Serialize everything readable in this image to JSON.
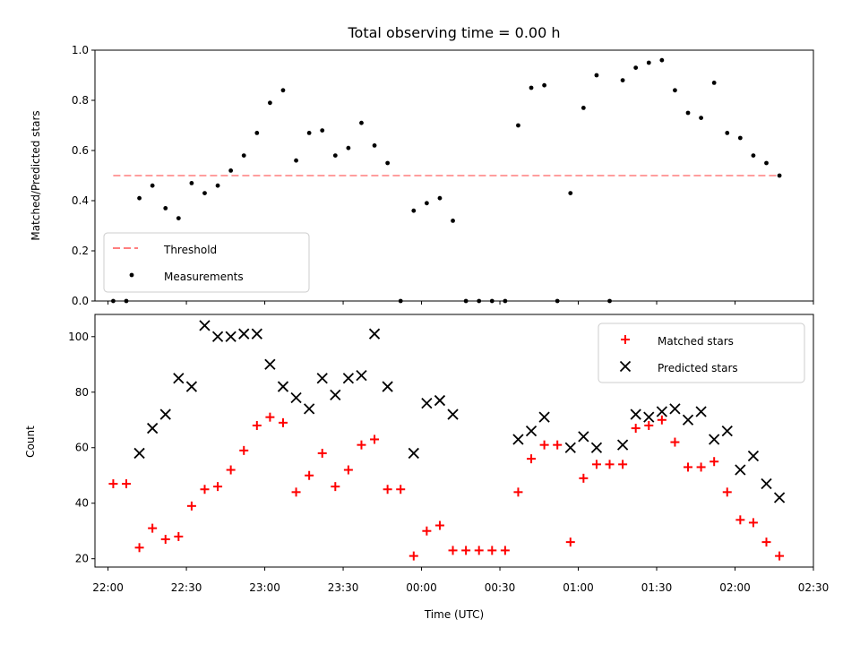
{
  "chart_data": [
    {
      "type": "scatter",
      "title": "Total observing time = 0.00 h",
      "xlabel": "",
      "ylabel": "Matched/Predicted stars",
      "ylim": [
        0,
        1.0
      ],
      "yticks": [
        "0.0",
        "0.2",
        "0.4",
        "0.6",
        "0.8",
        "1.0"
      ],
      "xlim": [
        "21:55",
        "02:30"
      ],
      "legend_position": "lower-left",
      "threshold": {
        "name": "Threshold",
        "value": 0.5,
        "x_start": "22:02",
        "x_end": "02:17",
        "color": "#ff7f7f",
        "style": "dashed"
      },
      "series": [
        {
          "name": "Measurements",
          "color": "#000000",
          "marker": "dot",
          "x": [
            "22:02",
            "22:07",
            "22:12",
            "22:17",
            "22:22",
            "22:27",
            "22:32",
            "22:37",
            "22:42",
            "22:47",
            "22:52",
            "22:57",
            "23:02",
            "23:07",
            "23:12",
            "23:17",
            "23:22",
            "23:27",
            "23:32",
            "23:37",
            "23:42",
            "23:47",
            "23:52",
            "23:57",
            "00:02",
            "00:07",
            "00:12",
            "00:17",
            "00:22",
            "00:27",
            "00:32",
            "00:37",
            "00:42",
            "00:47",
            "00:52",
            "00:57",
            "01:02",
            "01:07",
            "01:12",
            "01:17",
            "01:22",
            "01:27",
            "01:32",
            "01:37",
            "01:42",
            "01:47",
            "01:52",
            "01:57",
            "02:02",
            "02:07",
            "02:12",
            "02:17"
          ],
          "values": [
            0.0,
            0.0,
            0.41,
            0.46,
            0.37,
            0.33,
            0.47,
            0.43,
            0.46,
            0.52,
            0.58,
            0.67,
            0.79,
            0.84,
            0.56,
            0.67,
            0.68,
            0.58,
            0.61,
            0.71,
            0.62,
            0.55,
            0.0,
            0.36,
            0.39,
            0.41,
            0.32,
            0.0,
            0.0,
            0.0,
            0.0,
            0.7,
            0.85,
            0.86,
            0.0,
            0.43,
            0.77,
            0.9,
            0.0,
            0.88,
            0.93,
            0.95,
            0.96,
            0.84,
            0.75,
            0.73,
            0.87,
            0.67,
            0.65,
            0.58,
            0.55,
            0.5
          ]
        }
      ]
    },
    {
      "type": "scatter",
      "title": "",
      "xlabel": "Time (UTC)",
      "ylabel": "Count",
      "ylim": [
        17,
        108
      ],
      "yticks": [
        "20",
        "40",
        "60",
        "80",
        "100"
      ],
      "xlim": [
        "21:55",
        "02:30"
      ],
      "xticks": [
        "22:00",
        "22:30",
        "23:00",
        "23:30",
        "00:00",
        "00:30",
        "01:00",
        "01:30",
        "02:00",
        "02:30"
      ],
      "legend_position": "top-right",
      "series": [
        {
          "name": "Matched stars",
          "color": "#ff0000",
          "marker": "plus",
          "x": [
            "22:02",
            "22:07",
            "22:12",
            "22:17",
            "22:22",
            "22:27",
            "22:32",
            "22:37",
            "22:42",
            "22:47",
            "22:52",
            "22:57",
            "23:02",
            "23:07",
            "23:12",
            "23:17",
            "23:22",
            "23:27",
            "23:32",
            "23:37",
            "23:42",
            "23:47",
            "23:52",
            "23:57",
            "00:02",
            "00:07",
            "00:12",
            "00:17",
            "00:22",
            "00:27",
            "00:32",
            "00:37",
            "00:42",
            "00:47",
            "00:52",
            "00:57",
            "01:02",
            "01:07",
            "01:12",
            "01:17",
            "01:22",
            "01:27",
            "01:32",
            "01:37",
            "01:42",
            "01:47",
            "01:52",
            "01:57",
            "02:02",
            "02:07",
            "02:12",
            "02:17"
          ],
          "values": [
            47,
            47,
            24,
            31,
            27,
            28,
            39,
            45,
            46,
            52,
            59,
            68,
            71,
            69,
            44,
            50,
            58,
            46,
            52,
            61,
            63,
            45,
            45,
            21,
            30,
            32,
            23,
            23,
            23,
            23,
            23,
            44,
            56,
            61,
            61,
            26,
            49,
            54,
            54,
            54,
            67,
            68,
            70,
            62,
            53,
            53,
            55,
            44,
            34,
            33,
            26,
            21
          ]
        },
        {
          "name": "Predicted stars",
          "color": "#000000",
          "marker": "x",
          "x": [
            "22:12",
            "22:17",
            "22:22",
            "22:27",
            "22:32",
            "22:37",
            "22:42",
            "22:47",
            "22:52",
            "22:57",
            "23:02",
            "23:07",
            "23:12",
            "23:17",
            "23:22",
            "23:27",
            "23:32",
            "23:37",
            "23:42",
            "23:47",
            "23:57",
            "00:02",
            "00:07",
            "00:12",
            "00:37",
            "00:42",
            "00:47",
            "00:57",
            "01:02",
            "01:07",
            "01:17",
            "01:22",
            "01:27",
            "01:32",
            "01:37",
            "01:42",
            "01:47",
            "01:52",
            "01:57",
            "02:02",
            "02:07",
            "02:12",
            "02:17"
          ],
          "values": [
            58,
            67,
            72,
            85,
            82,
            104,
            100,
            100,
            101,
            101,
            90,
            82,
            78,
            74,
            85,
            79,
            85,
            86,
            101,
            82,
            58,
            76,
            77,
            72,
            63,
            66,
            71,
            60,
            64,
            60,
            61,
            72,
            71,
            73,
            74,
            70,
            73,
            63,
            66,
            52,
            57,
            47,
            42
          ]
        }
      ]
    }
  ]
}
